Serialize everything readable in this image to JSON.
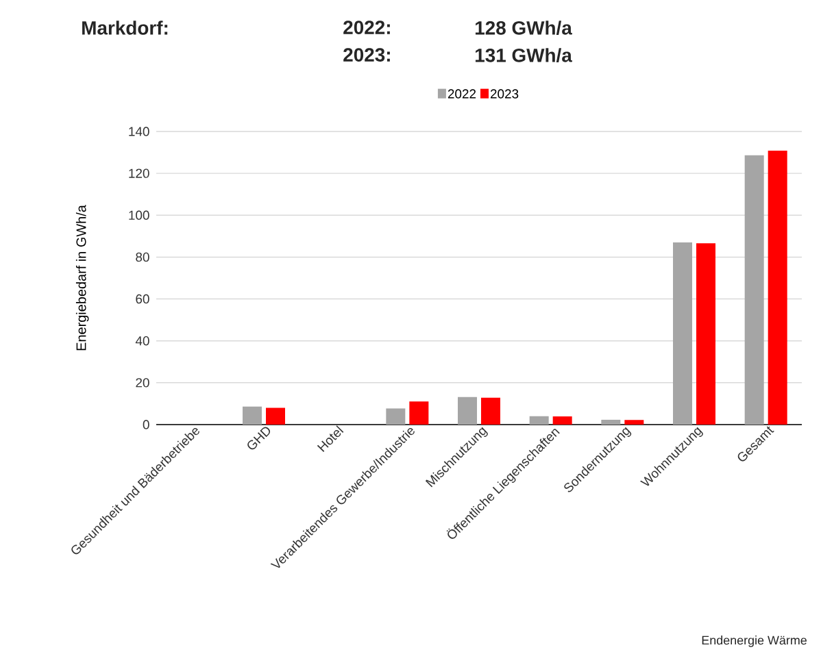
{
  "chart_data": {
    "type": "bar",
    "title": "Markdorf:",
    "annotations": [
      "2022:",
      "128 GWh/a",
      "2023:",
      "131 GWh/a",
      "Endenergie Wärme"
    ],
    "categories": [
      "Gesundheit und Bäderbetriebe",
      "GHD",
      "Hotel",
      "Verarbeitendes Gewerbe/Industrie",
      "Mischnutzung",
      "Öffentliche Liegenschaften",
      "Sondernutzung",
      "Wohnnutzung",
      "Gesamt"
    ],
    "ylabel": "Energiebedarf in GWh/a",
    "series": [
      {
        "name": "2022",
        "color": "#a5a5a5",
        "values": [
          0,
          8.6,
          0,
          7.7,
          13.2,
          4.0,
          2.3,
          87.0,
          128.6
        ]
      },
      {
        "name": "2023",
        "color": "#ff0000",
        "values": [
          0,
          8.0,
          0,
          11.0,
          12.8,
          3.9,
          2.2,
          86.6,
          130.8
        ]
      }
    ],
    "ylim": [
      0,
      140
    ],
    "yticks": [
      0,
      20,
      40,
      60,
      80,
      100,
      120,
      140
    ],
    "grid": "y",
    "legend": "top"
  }
}
